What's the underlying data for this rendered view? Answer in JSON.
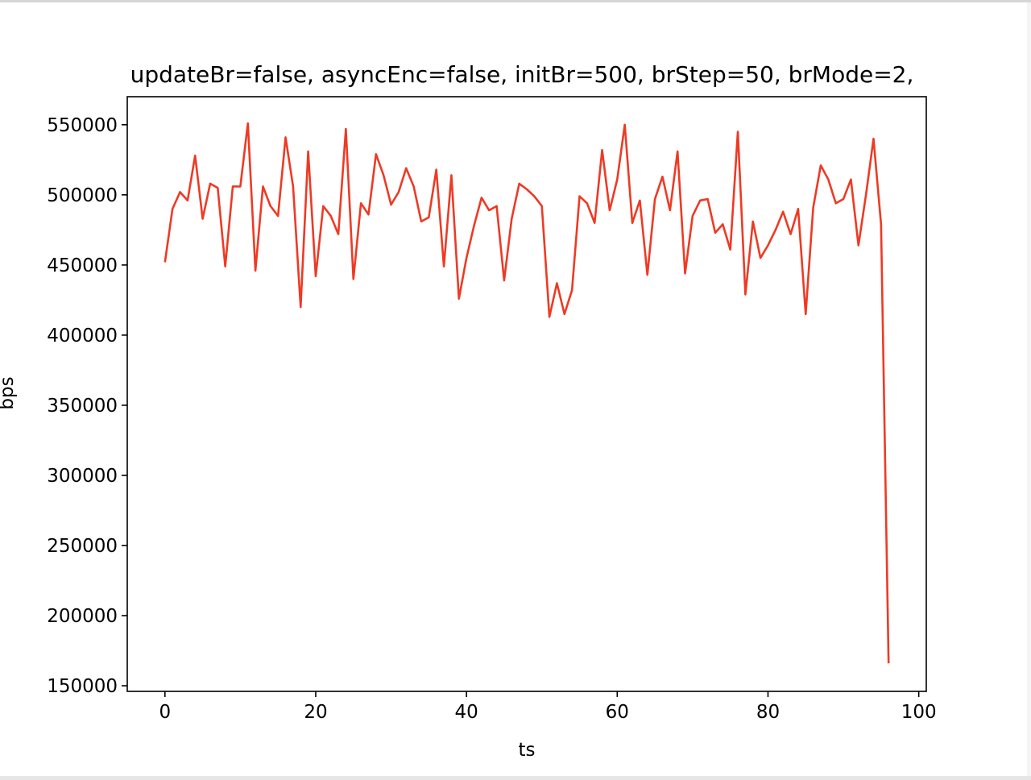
{
  "chart_data": {
    "type": "line",
    "title": "updateBr=false, asyncEnc=false, initBr=500, brStep=50, brMode=2,",
    "xlabel": "ts",
    "ylabel": "bps",
    "xlim": [
      -5,
      101
    ],
    "ylim": [
      146000,
      570000
    ],
    "xticks": [
      0,
      20,
      40,
      60,
      80,
      100
    ],
    "yticks": [
      150000,
      200000,
      250000,
      300000,
      350000,
      400000,
      450000,
      500000,
      550000
    ],
    "grid": false,
    "series": [
      {
        "color": "#ee3a24",
        "x": [
          0,
          1,
          2,
          3,
          4,
          5,
          6,
          7,
          8,
          9,
          10,
          11,
          12,
          13,
          14,
          15,
          16,
          17,
          18,
          19,
          20,
          21,
          22,
          23,
          24,
          25,
          26,
          27,
          28,
          29,
          30,
          31,
          32,
          33,
          34,
          35,
          36,
          37,
          38,
          39,
          40,
          41,
          42,
          43,
          44,
          45,
          46,
          47,
          48,
          49,
          50,
          51,
          52,
          53,
          54,
          55,
          56,
          57,
          58,
          59,
          60,
          61,
          62,
          63,
          64,
          65,
          66,
          67,
          68,
          69,
          70,
          71,
          72,
          73,
          74,
          75,
          76,
          77,
          78,
          79,
          80,
          81,
          82,
          83,
          84,
          85,
          86,
          87,
          88,
          89,
          90,
          91,
          92,
          93,
          94,
          95,
          96
        ],
        "y": [
          452000,
          490000,
          502000,
          496000,
          528000,
          483000,
          508000,
          505000,
          449000,
          506000,
          506000,
          551000,
          446000,
          506000,
          492000,
          485000,
          541000,
          506000,
          420000,
          531000,
          442000,
          492000,
          485000,
          472000,
          547000,
          440000,
          494000,
          486000,
          529000,
          514000,
          493000,
          502000,
          519000,
          506000,
          481000,
          484000,
          518000,
          449000,
          514000,
          426000,
          455000,
          478000,
          498000,
          489000,
          492000,
          439000,
          483000,
          508000,
          504000,
          499000,
          492000,
          413000,
          437000,
          415000,
          432000,
          499000,
          494000,
          480000,
          532000,
          489000,
          511000,
          550000,
          480000,
          496000,
          443000,
          497000,
          513000,
          489000,
          531000,
          444000,
          485000,
          496000,
          497000,
          473000,
          479000,
          461000,
          545000,
          429000,
          481000,
          455000,
          464000,
          475000,
          488000,
          472000,
          490000,
          415000,
          491000,
          521000,
          511000,
          494000,
          497000,
          511000,
          464000,
          500000,
          540000,
          479000,
          166000
        ]
      }
    ]
  }
}
